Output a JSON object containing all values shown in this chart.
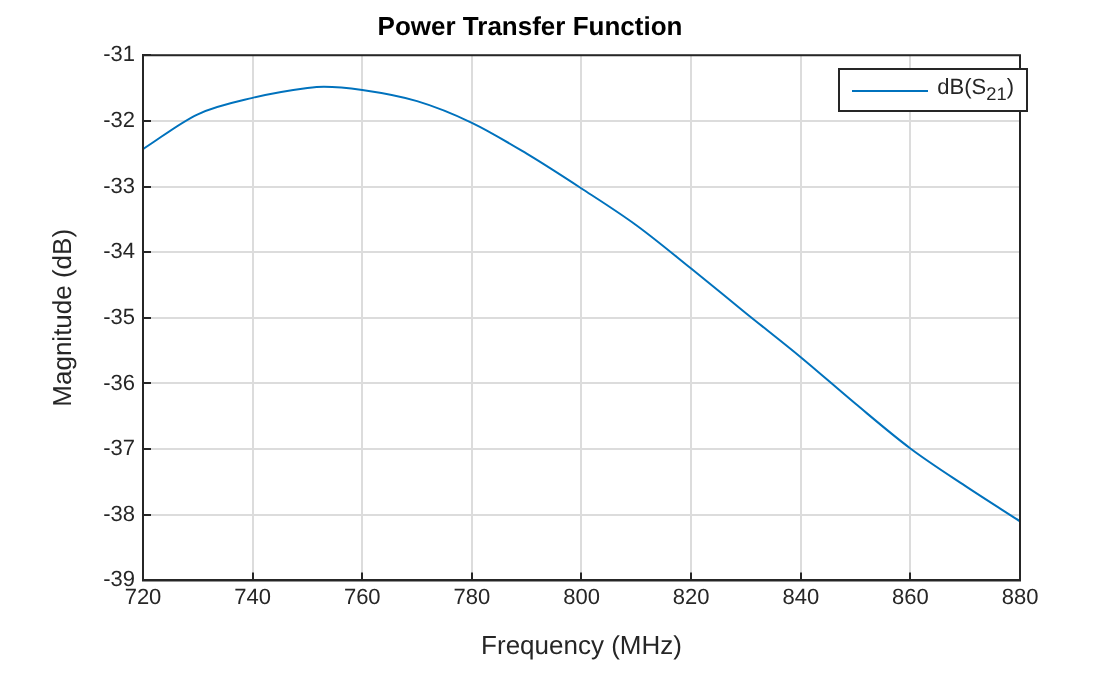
{
  "chart_data": {
    "type": "line",
    "title": "Power Transfer Function",
    "xlabel": "Frequency (MHz)",
    "ylabel": "Magnitude (dB)",
    "x": [
      720,
      730,
      740,
      750,
      753,
      760,
      770,
      780,
      790,
      800,
      810,
      820,
      830,
      840,
      850,
      860,
      870,
      880
    ],
    "series": [
      {
        "name": "dB(S$_{21}$)",
        "color": "#0072bd",
        "values": [
          -32.43,
          -31.9,
          -31.65,
          -31.5,
          -31.48,
          -31.53,
          -31.7,
          -32.03,
          -32.5,
          -33.03,
          -33.59,
          -34.25,
          -34.93,
          -35.6,
          -36.31,
          -36.99,
          -37.56,
          -38.1
        ]
      }
    ],
    "xlim": [
      720,
      880
    ],
    "xticks": [
      720,
      740,
      760,
      780,
      800,
      820,
      840,
      860,
      880
    ],
    "ylim": [
      -39,
      -31
    ],
    "yticks": [
      -39,
      -38,
      -37,
      -36,
      -35,
      -34,
      -33,
      -32,
      -31
    ],
    "grid": true,
    "legend": "top right",
    "marker": "none",
    "line_style": "solid"
  }
}
